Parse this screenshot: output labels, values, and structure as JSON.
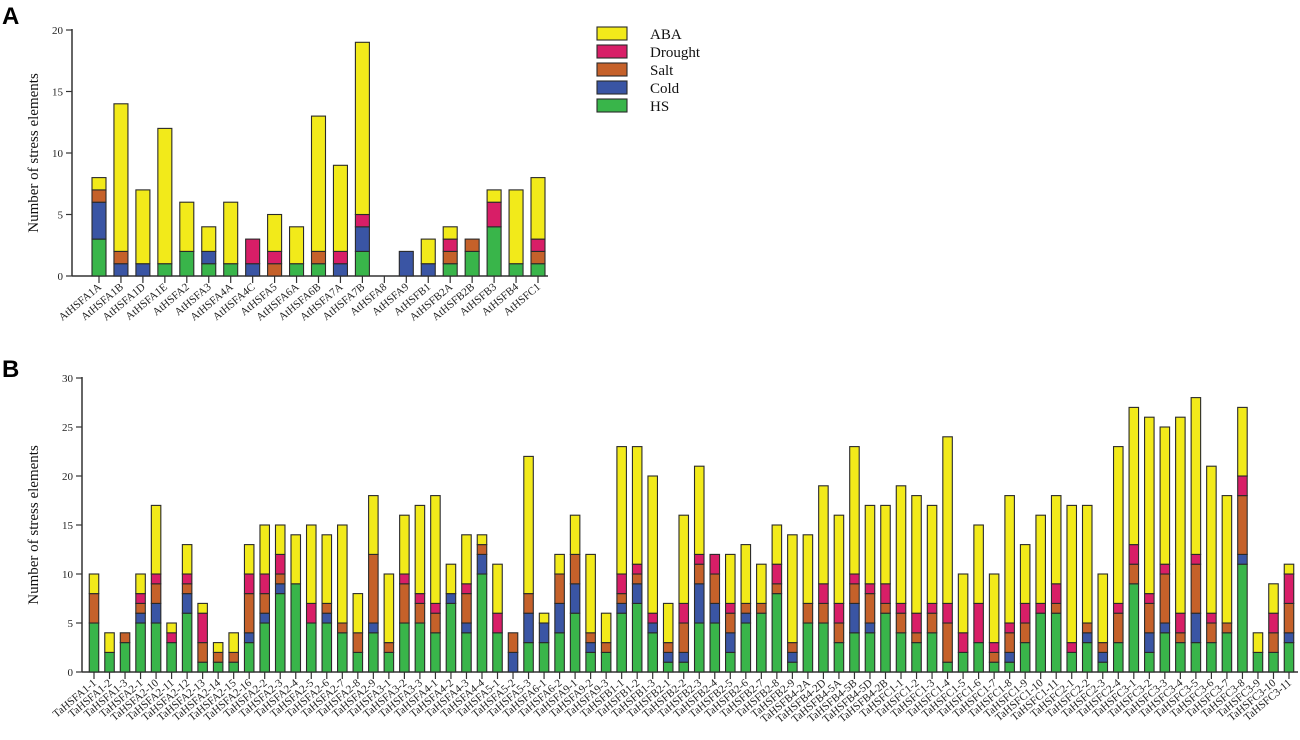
{
  "legend": {
    "placement": "top-right of panel A",
    "items": [
      {
        "name": "ABA",
        "color": "#f2ea1a"
      },
      {
        "name": "Drought",
        "color": "#d81e67"
      },
      {
        "name": "Salt",
        "color": "#c5612a"
      },
      {
        "name": "Cold",
        "color": "#3a55a4"
      },
      {
        "name": "HS",
        "color": "#39b54a"
      }
    ]
  },
  "chart_data": [
    {
      "panel": "A",
      "type": "bar",
      "stacked": true,
      "title": "",
      "xlabel": "",
      "ylabel": "Number of stress elements",
      "ylim": [
        0,
        20
      ],
      "yticks": [
        0,
        5,
        10,
        15,
        20
      ],
      "grid": false,
      "categories": [
        "AtHSFA1A",
        "AtHSFA1B",
        "AtHSFA1D",
        "AtHSFA1E",
        "AtHSFA2",
        "AtHSFA3",
        "AtHSFA4A",
        "AtHSFA4C",
        "AtHSFA5",
        "AtHSFA6A",
        "AtHSFA6B",
        "AtHSFA7A",
        "AtHSFA7B",
        "AtHSFA8",
        "AtHSFA9",
        "AtHSFB1",
        "AtHSFB2A",
        "AtHSFB2B",
        "AtHSFB3",
        "AtHSFB4",
        "AtHSFC1"
      ],
      "series": [
        {
          "name": "HS",
          "color": "#39b54a",
          "values": [
            3,
            0,
            0,
            1,
            2,
            1,
            1,
            0,
            0,
            1,
            1,
            0,
            2,
            0,
            0,
            0,
            1,
            2,
            4,
            1,
            1
          ]
        },
        {
          "name": "Cold",
          "color": "#3a55a4",
          "values": [
            3,
            1,
            1,
            0,
            0,
            1,
            0,
            1,
            0,
            0,
            0,
            1,
            2,
            0,
            2,
            1,
            0,
            0,
            0,
            0,
            0
          ]
        },
        {
          "name": "Salt",
          "color": "#c5612a",
          "values": [
            1,
            1,
            0,
            0,
            0,
            0,
            0,
            0,
            1,
            0,
            1,
            0,
            0,
            0,
            0,
            0,
            1,
            1,
            0,
            0,
            1
          ]
        },
        {
          "name": "Drought",
          "color": "#d81e67",
          "values": [
            0,
            0,
            0,
            0,
            0,
            0,
            0,
            2,
            1,
            0,
            0,
            1,
            1,
            0,
            0,
            0,
            1,
            0,
            2,
            0,
            1
          ]
        },
        {
          "name": "ABA",
          "color": "#f2ea1a",
          "values": [
            1,
            12,
            6,
            11,
            4,
            2,
            5,
            0,
            3,
            3,
            11,
            7,
            14,
            0,
            0,
            2,
            1,
            0,
            1,
            6,
            5
          ]
        }
      ]
    },
    {
      "panel": "B",
      "type": "bar",
      "stacked": true,
      "title": "",
      "xlabel": "",
      "ylabel": "Number of stress elements",
      "ylim": [
        0,
        30
      ],
      "yticks": [
        0,
        5,
        10,
        15,
        20,
        25,
        30
      ],
      "grid": false,
      "categories": [
        "TaHSFA1-1",
        "TaHSFA1-2",
        "TaHSFA1-3",
        "TaHSFA2-1",
        "TaHSFA2-10",
        "TaHSFA2-11",
        "TaHSFA2-12",
        "TaHSFA2-13",
        "TaHSFA2-14",
        "TaHSFA2-15",
        "TaHSFA2-16",
        "TaHSFA2-2",
        "TaHSFA2-3",
        "TaHSFA2-4",
        "TaHSFA2-5",
        "TaHSFA2-6",
        "TaHSFA2-7",
        "TaHSFA2-8",
        "TaHSFA2-9",
        "TaHSFA3-1",
        "TaHSFA3-2",
        "TaHSFA3-3",
        "TaHSFA4-1",
        "TaHSFA4-2",
        "TaHSFA4-3",
        "TaHSFA4-4",
        "TaHSFA5-1",
        "TaHSFA5-2",
        "TaHSFA5-3",
        "TaHSFA6-1",
        "TaHSFA6-2",
        "TaHSFA9-1",
        "TaHSFA9-2",
        "TaHSFA9-3",
        "TaHSFB1-1",
        "TaHSFB1-2",
        "TaHSFB1-3",
        "TaHSFB2-1",
        "TaHSFB2-2",
        "TaHSFB2-3",
        "TaHSFB2-4",
        "TaHSFB2-5",
        "TaHSFB2-6",
        "TaHSFB2-7",
        "TaHSFB2-8",
        "TaHSFB2-9",
        "TaHSFB4-2A",
        "TaHSFB4-2D",
        "TaHSFB4-5A",
        "TaHSFB4-5B",
        "TaHSFB4-5D",
        "TaHSFB4-2B",
        "TaHSFC1-1",
        "TaHSFC1-2",
        "TaHSFC1-3",
        "TaHSFC1-4",
        "TaHSFC1-5",
        "TaHSFC1-6",
        "TaHSFC1-7",
        "TaHSFC1-8",
        "TaHSFC1-9",
        "TaHSFC1-10",
        "TaHSFC1-11",
        "TaHSFC2-1",
        "TaHSFC2-2",
        "TaHSFC2-3",
        "TaHSFC2-4",
        "TaHSFC3-1",
        "TaHSFC3-2",
        "TaHSFC3-3",
        "TaHSFC3-4",
        "TaHSFC3-5",
        "TaHSFC3-6",
        "TaHSFC3-7",
        "TaHSFC3-8",
        "TaHSFC3-9",
        "TaHSFC3-10",
        "TaHSFC3-11"
      ],
      "series": [
        {
          "name": "HS",
          "color": "#39b54a",
          "values": [
            5,
            2,
            3,
            5,
            5,
            3,
            6,
            1,
            1,
            1,
            3,
            5,
            8,
            9,
            5,
            5,
            4,
            2,
            4,
            2,
            5,
            5,
            4,
            7,
            4,
            10,
            4,
            0,
            3,
            3,
            4,
            6,
            2,
            2,
            6,
            7,
            4,
            1,
            1,
            5,
            5,
            2,
            5,
            6,
            8,
            1,
            5,
            5,
            3,
            4,
            4,
            6,
            4,
            3,
            4,
            1,
            2,
            3,
            1,
            1,
            3,
            6,
            6,
            2,
            3,
            1,
            3,
            9,
            2,
            4,
            3,
            3,
            3,
            4,
            11,
            2,
            2,
            3
          ]
        },
        {
          "name": "Cold",
          "color": "#3a55a4",
          "values": [
            0,
            0,
            0,
            1,
            2,
            0,
            2,
            0,
            0,
            0,
            1,
            1,
            1,
            0,
            0,
            1,
            0,
            0,
            1,
            0,
            0,
            0,
            0,
            1,
            1,
            2,
            0,
            2,
            3,
            2,
            3,
            3,
            1,
            0,
            1,
            2,
            1,
            1,
            1,
            4,
            2,
            2,
            1,
            0,
            0,
            1,
            0,
            0,
            0,
            3,
            1,
            0,
            0,
            0,
            0,
            0,
            0,
            0,
            0,
            1,
            0,
            0,
            0,
            0,
            1,
            1,
            0,
            0,
            2,
            1,
            0,
            3,
            0,
            0,
            1,
            0,
            0,
            1
          ]
        },
        {
          "name": "Salt",
          "color": "#c5612a",
          "values": [
            3,
            0,
            1,
            1,
            2,
            0,
            1,
            2,
            1,
            1,
            4,
            2,
            1,
            0,
            0,
            1,
            1,
            2,
            7,
            1,
            4,
            2,
            2,
            0,
            3,
            1,
            0,
            2,
            2,
            0,
            3,
            3,
            1,
            1,
            1,
            1,
            0,
            1,
            3,
            2,
            3,
            2,
            1,
            1,
            1,
            1,
            2,
            2,
            2,
            2,
            3,
            1,
            2,
            1,
            2,
            4,
            0,
            0,
            1,
            2,
            2,
            0,
            1,
            0,
            1,
            1,
            3,
            2,
            3,
            5,
            1,
            5,
            2,
            1,
            6,
            0,
            2,
            3
          ]
        },
        {
          "name": "Drought",
          "color": "#d81e67",
          "values": [
            0,
            0,
            0,
            1,
            1,
            1,
            1,
            3,
            0,
            0,
            2,
            2,
            2,
            0,
            2,
            0,
            0,
            0,
            0,
            0,
            1,
            1,
            1,
            0,
            1,
            0,
            2,
            0,
            0,
            0,
            0,
            0,
            0,
            0,
            2,
            1,
            1,
            0,
            2,
            1,
            2,
            1,
            0,
            0,
            2,
            0,
            0,
            2,
            2,
            1,
            1,
            2,
            1,
            2,
            1,
            2,
            2,
            4,
            1,
            1,
            2,
            1,
            2,
            1,
            0,
            0,
            1,
            2,
            1,
            1,
            2,
            1,
            1,
            0,
            2,
            0,
            2,
            3
          ]
        },
        {
          "name": "ABA",
          "color": "#f2ea1a",
          "values": [
            2,
            2,
            0,
            2,
            7,
            1,
            3,
            1,
            1,
            2,
            3,
            5,
            3,
            5,
            8,
            7,
            10,
            4,
            6,
            7,
            6,
            9,
            11,
            3,
            5,
            1,
            5,
            0,
            14,
            1,
            2,
            4,
            8,
            3,
            13,
            12,
            14,
            4,
            9,
            9,
            0,
            5,
            6,
            4,
            4,
            11,
            7,
            10,
            9,
            13,
            8,
            8,
            12,
            12,
            10,
            17,
            6,
            8,
            7,
            13,
            6,
            9,
            9,
            14,
            12,
            7,
            16,
            14,
            18,
            14,
            20,
            16,
            15,
            13,
            7,
            2,
            3,
            1
          ]
        }
      ]
    }
  ],
  "panels": {
    "a": {
      "letter": "A",
      "ylabel": "Number of stress elements"
    },
    "b": {
      "letter": "B",
      "ylabel": "Number of stress elements"
    }
  }
}
